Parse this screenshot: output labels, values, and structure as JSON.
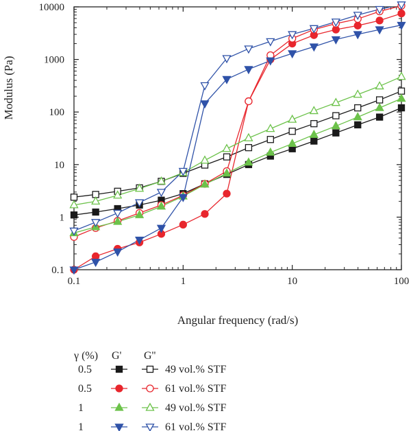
{
  "chart_data": {
    "type": "scatter",
    "title": "",
    "xlabel": "Angular frequency (rad/s)",
    "ylabel": "Modulus (Pa)",
    "xscale": "log",
    "yscale": "log",
    "xlim": [
      0.1,
      100
    ],
    "ylim": [
      0.1,
      10000
    ],
    "x_ticks": [
      "0.1",
      "1",
      "10",
      "100"
    ],
    "y_ticks": [
      "0.1",
      "1",
      "10",
      "100",
      "1000",
      "10000"
    ],
    "grid": false,
    "legend_placement": "bottom",
    "legend": {
      "header_symbol": "γ (%)",
      "header_g1": "G'",
      "header_g2": "G''",
      "rows": [
        {
          "gamma": "0.5",
          "label": "49 vol.% STF",
          "color": "#1a1a1a"
        },
        {
          "gamma": "0.5",
          "label": "61 vol.% STF",
          "color": "#e8262d"
        },
        {
          "gamma": "1",
          "label": "49 vol.% STF",
          "color": "#6cc24a"
        },
        {
          "gamma": "1",
          "label": "61 vol.% STF",
          "color": "#2f52a8"
        }
      ]
    },
    "x": [
      0.1,
      0.158,
      0.251,
      0.398,
      0.631,
      1.0,
      1.58,
      2.51,
      3.98,
      6.31,
      10.0,
      15.8,
      25.1,
      39.8,
      63.1,
      100.0
    ],
    "series": [
      {
        "name": "G' 0.5% 49 vol.% STF",
        "marker": "square",
        "filled": true,
        "color": "#1a1a1a",
        "values": [
          1.1,
          1.25,
          1.45,
          1.7,
          2.1,
          2.8,
          4.3,
          6.5,
          10,
          14.5,
          20,
          28,
          40,
          57,
          80,
          120
        ]
      },
      {
        "name": "G'' 0.5% 49 vol.% STF",
        "marker": "square",
        "filled": false,
        "color": "#1a1a1a",
        "values": [
          2.4,
          2.7,
          3.1,
          3.6,
          4.8,
          6.8,
          9.8,
          14,
          21,
          30,
          43,
          60,
          85,
          120,
          170,
          250
        ]
      },
      {
        "name": "G' 0.5% 61 vol.% STF",
        "marker": "circle",
        "filled": true,
        "color": "#e8262d",
        "values": [
          0.1,
          0.18,
          0.25,
          0.33,
          0.48,
          0.72,
          1.15,
          2.8,
          160,
          1000,
          2000,
          2900,
          3700,
          4400,
          5500,
          7500
        ]
      },
      {
        "name": "G'' 0.5% 61 vol.% STF",
        "marker": "circle",
        "filled": false,
        "color": "#e8262d",
        "values": [
          0.42,
          0.62,
          0.85,
          1.2,
          1.7,
          2.6,
          4.3,
          7.5,
          160,
          1200,
          2500,
          3700,
          4800,
          5900,
          8200,
          10500
        ]
      },
      {
        "name": "G' 1% 49 vol.% STF",
        "marker": "triangle-up",
        "filled": true,
        "color": "#6cc24a",
        "values": [
          0.5,
          0.65,
          0.82,
          1.1,
          1.6,
          2.5,
          4.2,
          6.8,
          11,
          17,
          25,
          37,
          54,
          80,
          120,
          180
        ]
      },
      {
        "name": "G'' 1% 49 vol.% STF",
        "marker": "triangle-up",
        "filled": false,
        "color": "#6cc24a",
        "values": [
          1.7,
          2.0,
          2.6,
          3.5,
          4.8,
          7.0,
          12,
          20,
          32,
          48,
          72,
          105,
          150,
          215,
          310,
          470
        ]
      },
      {
        "name": "G' 1% 61 vol.% STF",
        "marker": "triangle-down",
        "filled": true,
        "color": "#2f52a8",
        "values": [
          0.1,
          0.14,
          0.22,
          0.37,
          0.62,
          2.4,
          145,
          420,
          650,
          950,
          1300,
          1750,
          2400,
          3000,
          3700,
          4500
        ]
      },
      {
        "name": "G'' 1% 61 vol.% STF",
        "marker": "triangle-down",
        "filled": false,
        "color": "#2f52a8",
        "values": [
          0.55,
          0.8,
          1.2,
          1.9,
          3.0,
          7.5,
          320,
          1050,
          1600,
          2200,
          3000,
          3900,
          5200,
          7000,
          9000,
          11000
        ]
      }
    ]
  }
}
